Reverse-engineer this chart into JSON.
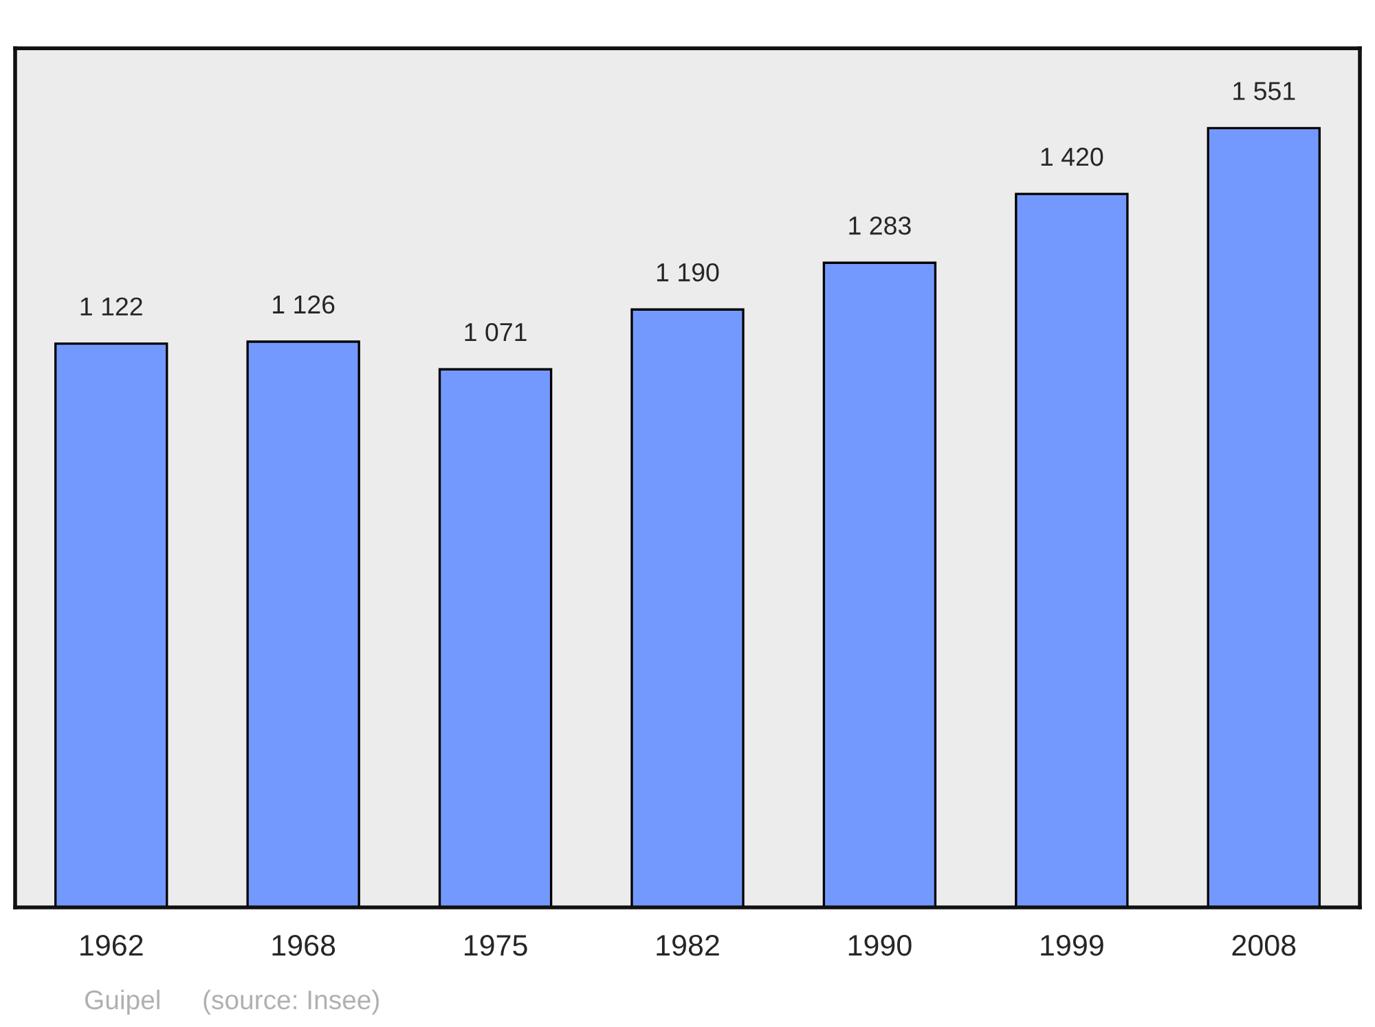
{
  "chart_data": {
    "type": "bar",
    "categories": [
      "1962",
      "1968",
      "1975",
      "1982",
      "1990",
      "1999",
      "2008"
    ],
    "values": [
      1122,
      1126,
      1071,
      1190,
      1283,
      1420,
      1551
    ],
    "value_labels": [
      "1 122",
      "1 126",
      "1 071",
      "1 190",
      "1 283",
      "1 420",
      "1 551"
    ],
    "color": "#7399ff",
    "ylim": [
      0,
      1710
    ],
    "tick_labels": "x",
    "grid": false,
    "annotations": [
      "Guipel",
      "(source: Insee)"
    ]
  }
}
